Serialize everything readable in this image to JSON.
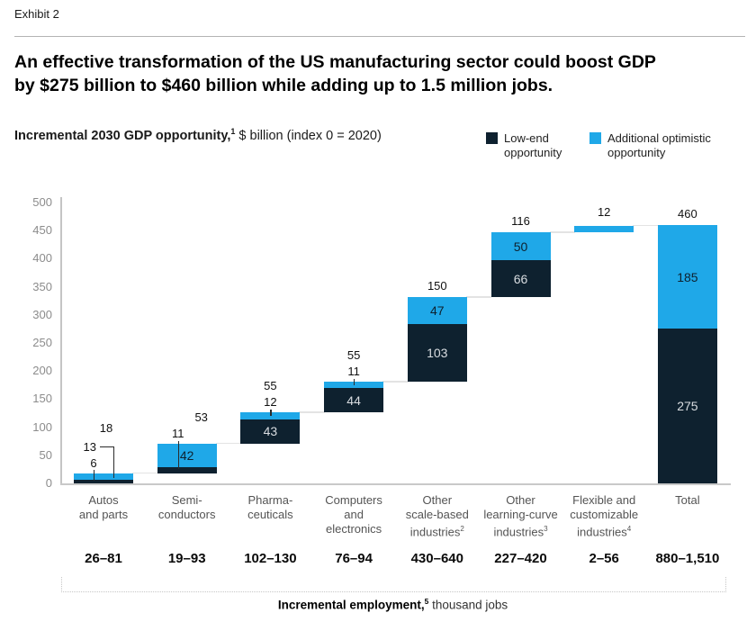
{
  "page": {
    "exhibit_label": "Exhibit 2",
    "title_line1": "An effective transformation of the US manufacturing sector could boost GDP",
    "title_line2": "by $275 billion to $460 billion while adding up to 1.5 million jobs."
  },
  "subtitle": {
    "bold": "Incremental 2030 GDP opportunity,",
    "sup": "1",
    "rest": " $ billion (index 0 = 2020)"
  },
  "legend": {
    "low": {
      "line1": "Low-end",
      "line2": "opportunity",
      "color": "#0E212F"
    },
    "high": {
      "line1": "Additional optimistic",
      "line2": "opportunity",
      "color": "#1FA8E8"
    }
  },
  "footer": {
    "bold": "Incremental employment,",
    "sup": "5",
    "rest": " thousand jobs"
  },
  "chart_data": {
    "type": "bar",
    "subtype": "waterfall",
    "title": "Incremental 2030 GDP opportunity, $ billion (index 0 = 2020)",
    "ylabel": "$ billion",
    "ylim": [
      0,
      500
    ],
    "yticks": [
      0,
      50,
      100,
      150,
      200,
      250,
      300,
      350,
      400,
      450,
      500
    ],
    "grid": false,
    "legend_position": "top-right",
    "series": [
      {
        "name": "Low-end opportunity",
        "color": "#0E212F"
      },
      {
        "name": "Additional optimistic opportunity",
        "color": "#1FA8E8"
      }
    ],
    "connectors": [
      18,
      71,
      126,
      181,
      331,
      447,
      459
    ],
    "bars": [
      {
        "name": "Autos and parts",
        "category_lines": [
          "Autos",
          "and parts"
        ],
        "sup": "",
        "dark": [
          0,
          6
        ],
        "blue": [
          6,
          18
        ],
        "dark_label": "6",
        "blue_label": "13",
        "total_label": "18",
        "label_style": "leaders",
        "employment": "26–81"
      },
      {
        "name": "Semiconductors",
        "category_lines": [
          "Semi-",
          "conductors"
        ],
        "sup": "",
        "dark": [
          18,
          29
        ],
        "blue": [
          29,
          71
        ],
        "dark_label": "11",
        "blue_label": "42",
        "total_label": "53",
        "label_style": "dark-leader",
        "employment": "19–93"
      },
      {
        "name": "Pharmaceuticals",
        "category_lines": [
          "Pharma-",
          "ceuticals"
        ],
        "sup": "",
        "dark": [
          71,
          114
        ],
        "blue": [
          114,
          126
        ],
        "dark_label": "43",
        "blue_label": "12",
        "total_label": "55",
        "label_style": "blue-tick",
        "employment": "102–130"
      },
      {
        "name": "Computers and electronics",
        "category_lines": [
          "Computers",
          "and",
          "electronics"
        ],
        "sup": "",
        "dark": [
          126,
          170
        ],
        "blue": [
          170,
          181
        ],
        "dark_label": "44",
        "blue_label": "11",
        "total_label": "55",
        "label_style": "blue-tick",
        "employment": "76–94"
      },
      {
        "name": "Other scale-based industries",
        "category_lines": [
          "Other",
          "scale-based",
          "industries"
        ],
        "sup": "2",
        "dark": [
          181,
          284
        ],
        "blue": [
          284,
          331
        ],
        "dark_label": "103",
        "blue_label": "47",
        "total_label": "150",
        "label_style": "inside",
        "employment": "430–640"
      },
      {
        "name": "Other learning-curve industries",
        "category_lines": [
          "Other",
          "learning-curve",
          "industries"
        ],
        "sup": "3",
        "dark": [
          331,
          397
        ],
        "blue": [
          397,
          447
        ],
        "dark_label": "66",
        "blue_label": "50",
        "total_label": "116",
        "label_style": "inside",
        "employment": "227–420"
      },
      {
        "name": "Flexible and customizable industries",
        "category_lines": [
          "Flexible and",
          "customizable",
          "industries"
        ],
        "sup": "4",
        "dark": null,
        "blue": [
          447,
          459
        ],
        "dark_label": "",
        "blue_label": "",
        "total_label": "12",
        "label_style": "plain",
        "employment": "2–56"
      },
      {
        "name": "Total",
        "category_lines": [
          "Total"
        ],
        "sup": "",
        "dark": [
          0,
          275
        ],
        "blue": [
          275,
          460
        ],
        "dark_label": "275",
        "blue_label": "185",
        "total_label": "460",
        "label_style": "inside",
        "employment": "880–1,510"
      }
    ]
  }
}
